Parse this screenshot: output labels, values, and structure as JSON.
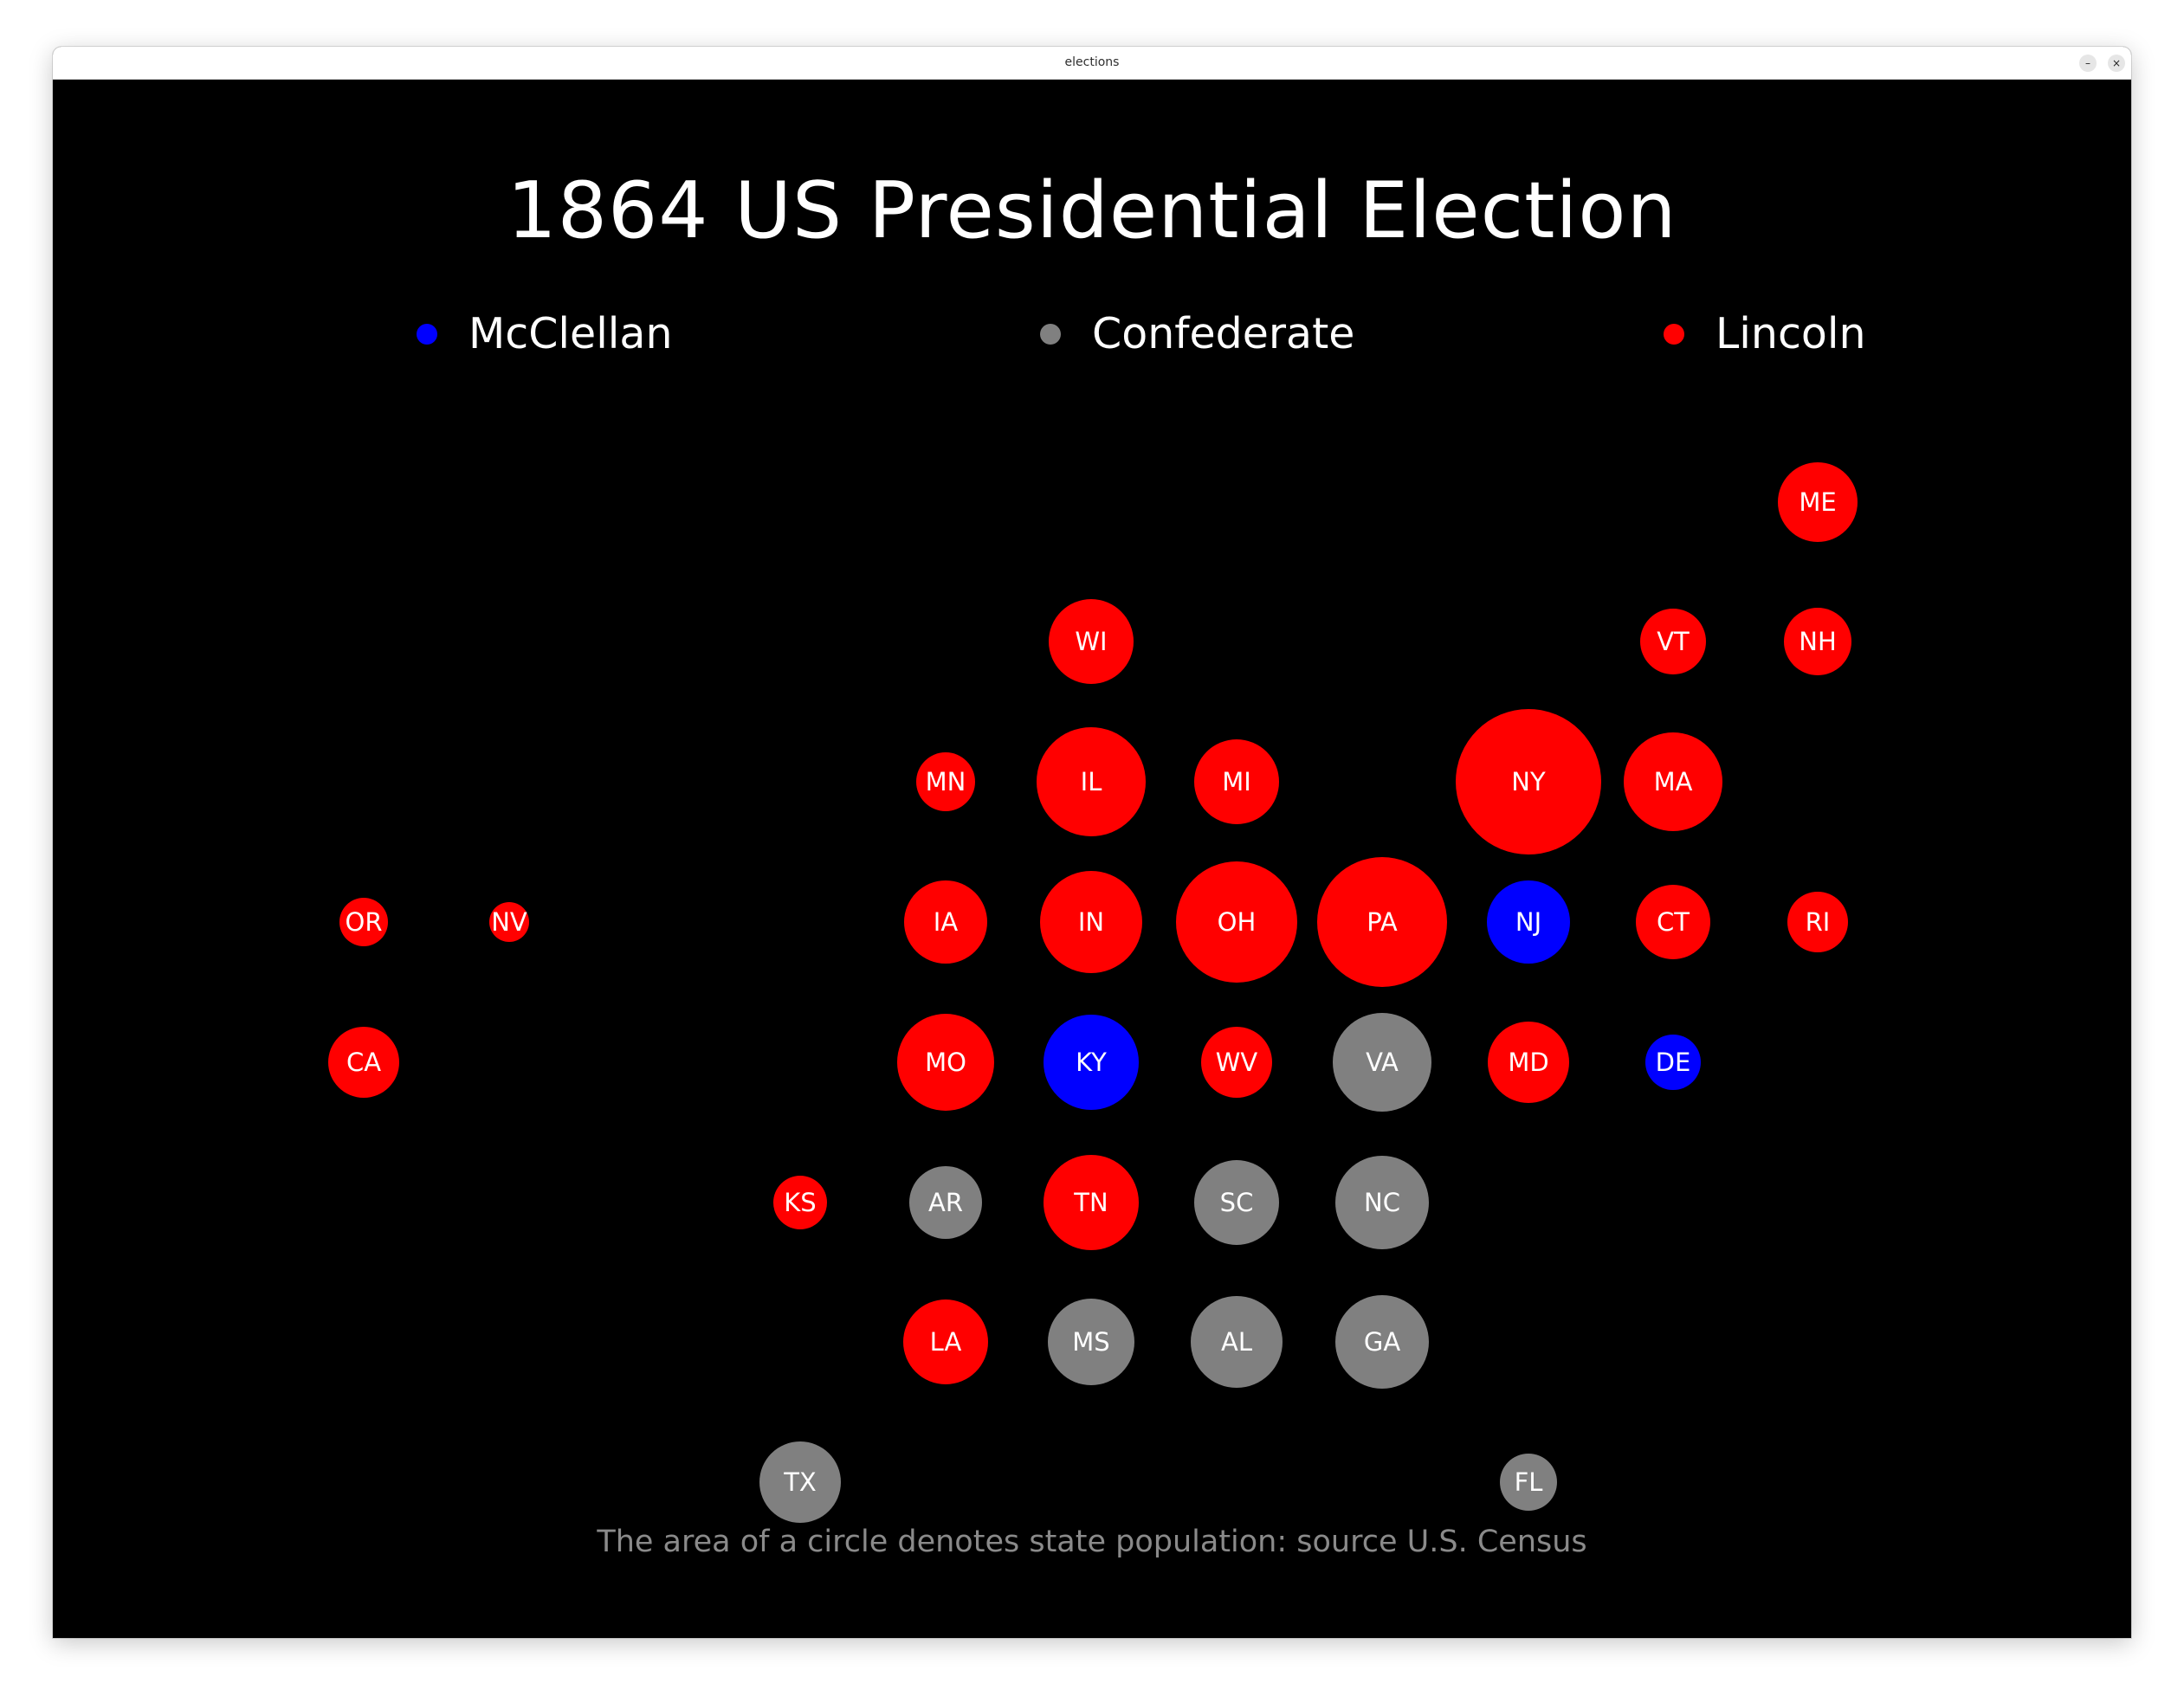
{
  "window": {
    "title": "elections",
    "minimize_label": "–",
    "close_label": "×"
  },
  "main": {
    "title": "1864 US Presidential Election",
    "footnote": "The area of a circle denotes state population: source U.S. Census"
  },
  "legend": [
    {
      "label": "McClellan",
      "color": "#0000ff"
    },
    {
      "label": "Confederate",
      "color": "#808080"
    },
    {
      "label": "Lincoln",
      "color": "#ff0000"
    }
  ],
  "colors": {
    "McClellan": "#0000ff",
    "Confederate": "#808080",
    "Lincoln": "#ff0000",
    "background": "#000000"
  },
  "states": [
    {
      "abbr": "ME",
      "winner": "Lincoln"
    },
    {
      "abbr": "WI",
      "winner": "Lincoln"
    },
    {
      "abbr": "VT",
      "winner": "Lincoln"
    },
    {
      "abbr": "NH",
      "winner": "Lincoln"
    },
    {
      "abbr": "MN",
      "winner": "Lincoln"
    },
    {
      "abbr": "IL",
      "winner": "Lincoln"
    },
    {
      "abbr": "MI",
      "winner": "Lincoln"
    },
    {
      "abbr": "NY",
      "winner": "Lincoln"
    },
    {
      "abbr": "MA",
      "winner": "Lincoln"
    },
    {
      "abbr": "OR",
      "winner": "Lincoln"
    },
    {
      "abbr": "NV",
      "winner": "Lincoln"
    },
    {
      "abbr": "IA",
      "winner": "Lincoln"
    },
    {
      "abbr": "IN",
      "winner": "Lincoln"
    },
    {
      "abbr": "OH",
      "winner": "Lincoln"
    },
    {
      "abbr": "PA",
      "winner": "Lincoln"
    },
    {
      "abbr": "NJ",
      "winner": "McClellan"
    },
    {
      "abbr": "CT",
      "winner": "Lincoln"
    },
    {
      "abbr": "RI",
      "winner": "Lincoln"
    },
    {
      "abbr": "CA",
      "winner": "Lincoln"
    },
    {
      "abbr": "MO",
      "winner": "Lincoln"
    },
    {
      "abbr": "KY",
      "winner": "McClellan"
    },
    {
      "abbr": "WV",
      "winner": "Lincoln"
    },
    {
      "abbr": "VA",
      "winner": "Confederate"
    },
    {
      "abbr": "MD",
      "winner": "Lincoln"
    },
    {
      "abbr": "DE",
      "winner": "McClellan"
    },
    {
      "abbr": "KS",
      "winner": "Lincoln"
    },
    {
      "abbr": "AR",
      "winner": "Confederate"
    },
    {
      "abbr": "TN",
      "winner": "Lincoln"
    },
    {
      "abbr": "SC",
      "winner": "Confederate"
    },
    {
      "abbr": "NC",
      "winner": "Confederate"
    },
    {
      "abbr": "LA",
      "winner": "Lincoln"
    },
    {
      "abbr": "MS",
      "winner": "Confederate"
    },
    {
      "abbr": "AL",
      "winner": "Confederate"
    },
    {
      "abbr": "GA",
      "winner": "Confederate"
    },
    {
      "abbr": "TX",
      "winner": "Confederate"
    },
    {
      "abbr": "FL",
      "winner": "Confederate"
    }
  ]
}
